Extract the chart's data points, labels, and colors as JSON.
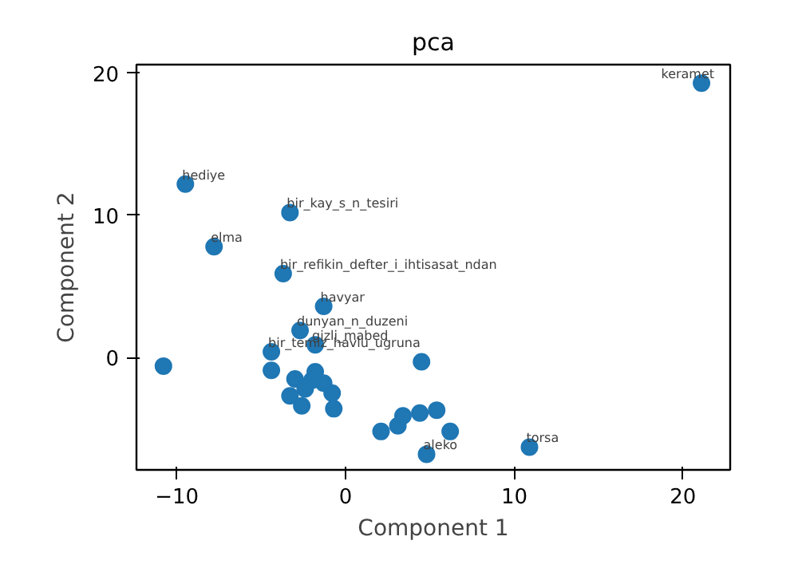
{
  "chart_data": {
    "type": "scatter",
    "title": "pca",
    "xlabel": "Component 1",
    "ylabel": "Component 2",
    "xlim": [
      -12.4,
      22.8
    ],
    "ylim": [
      -7.9,
      20.6
    ],
    "xticks": [
      -10,
      0,
      10,
      20
    ],
    "yticks": [
      0,
      10,
      20
    ],
    "grid": false,
    "marker": "circle",
    "series": [
      {
        "color": "#1f77b4",
        "x": [
          21.1,
          -9.5,
          -3.3,
          -7.8,
          -3.7,
          -1.3,
          -2.7,
          -1.8,
          -4.4,
          -10.8,
          -4.4,
          -3.0,
          -2.4,
          -1.8,
          -1.3,
          -0.8,
          -3.3,
          -2.6,
          -0.7,
          4.5,
          2.1,
          3.1,
          3.4,
          4.4,
          5.4,
          6.2,
          4.8,
          10.9,
          -2.0
        ],
        "values": [
          19.3,
          12.2,
          10.2,
          7.8,
          5.9,
          3.6,
          1.9,
          0.9,
          0.4,
          -0.6,
          -0.9,
          -1.5,
          -2.2,
          -1.0,
          -1.8,
          -2.5,
          -2.7,
          -3.4,
          -3.6,
          -0.3,
          -5.2,
          -4.8,
          -4.1,
          -3.9,
          -3.7,
          -5.2,
          -6.8,
          -6.3,
          -1.6
        ]
      }
    ],
    "annotations": [
      {
        "text": "keramet",
        "x": 21.1,
        "y": 19.3
      },
      {
        "text": "hediye",
        "x": -9.5,
        "y": 12.2
      },
      {
        "text": "bir_kay_s_n_tesiri",
        "x": -3.3,
        "y": 10.2
      },
      {
        "text": "elma",
        "x": -7.8,
        "y": 7.8
      },
      {
        "text": "bir_refikin_defter_i_ihtisasat_ndan",
        "x": -3.7,
        "y": 5.9
      },
      {
        "text": "havyar",
        "x": -1.3,
        "y": 3.6
      },
      {
        "text": "dunyan_n_duzeni",
        "x": -2.7,
        "y": 1.9
      },
      {
        "text": "gizli_mabed",
        "x": -1.8,
        "y": 0.9
      },
      {
        "text": "bir_temiz_havlu_ugruna",
        "x": -4.4,
        "y": 0.4
      },
      {
        "text": "aleko",
        "x": 4.8,
        "y": -6.8
      },
      {
        "text": "torsa",
        "x": 10.9,
        "y": -6.3
      }
    ]
  }
}
